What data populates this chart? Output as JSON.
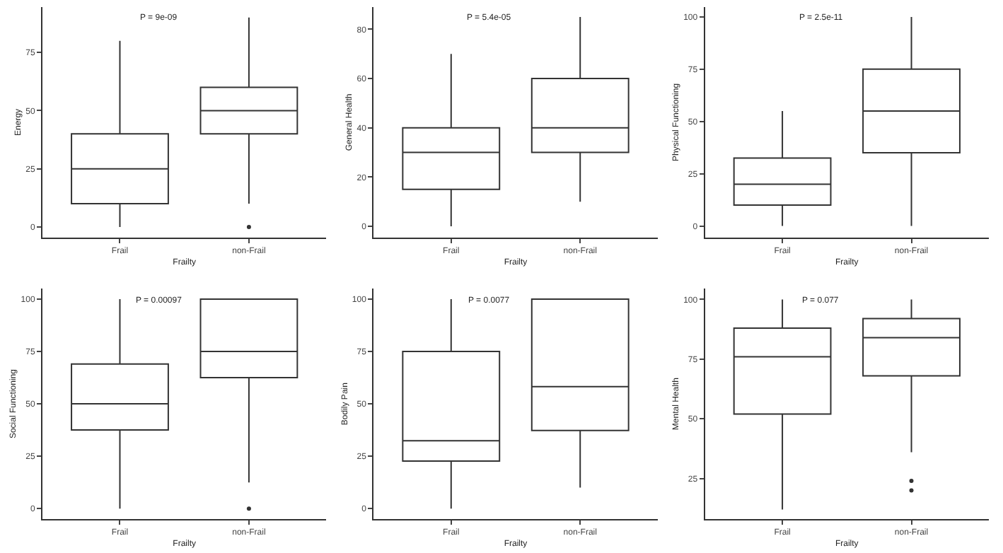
{
  "chart_data": [
    {
      "type": "box",
      "xlabel": "Frailty",
      "ylabel": "Energy",
      "annotations": [
        "P = 9e-09"
      ],
      "categories": [
        "Frail",
        "non-Frail"
      ],
      "ylim": [
        -4.5,
        94.5
      ],
      "yticks": [
        0,
        25,
        50,
        75
      ],
      "series": [
        {
          "color": "#333333",
          "boxes": [
            {
              "low": 0,
              "q1": 10,
              "median": 25,
              "q3": 40,
              "high": 80
            },
            {
              "low": 10,
              "q1": 40,
              "median": 50,
              "q3": 60,
              "high": 90,
              "outliers": [
                0
              ]
            }
          ]
        }
      ]
    },
    {
      "type": "box",
      "xlabel": "Frailty",
      "ylabel": "General Health",
      "annotations": [
        "P = 5.4e-05"
      ],
      "categories": [
        "Frail",
        "non-Frail"
      ],
      "ylim": [
        -4.5,
        89
      ],
      "yticks": [
        0,
        20,
        40,
        60,
        80
      ],
      "series": [
        {
          "color": "#333333",
          "boxes": [
            {
              "low": 0,
              "q1": 15,
              "median": 30,
              "q3": 40,
              "high": 70
            },
            {
              "low": 10,
              "q1": 30,
              "median": 40,
              "q3": 60,
              "high": 85
            }
          ]
        }
      ]
    },
    {
      "type": "box",
      "xlabel": "Frailty",
      "ylabel": "Physical Functioning",
      "annotations": [
        "P = 2.5e-11"
      ],
      "categories": [
        "Frail",
        "non-Frail"
      ],
      "ylim": [
        -5.5,
        104.7
      ],
      "yticks": [
        0,
        25,
        50,
        75,
        100
      ],
      "series": [
        {
          "color": "#333333",
          "boxes": [
            {
              "low": 0,
              "q1": 10,
              "median": 20,
              "q3": 32.5,
              "high": 55
            },
            {
              "low": 0,
              "q1": 35,
              "median": 55,
              "q3": 75,
              "high": 100
            }
          ]
        }
      ]
    },
    {
      "type": "box",
      "xlabel": "Frailty",
      "ylabel": "Social Functioning",
      "annotations": [
        "P = 0.00097"
      ],
      "categories": [
        "Frail",
        "non-Frail"
      ],
      "ylim": [
        -5,
        105
      ],
      "yticks": [
        0,
        25,
        50,
        75,
        100
      ],
      "series": [
        {
          "color": "#333333",
          "boxes": [
            {
              "low": 0,
              "q1": 37.5,
              "median": 50,
              "q3": 69,
              "high": 100
            },
            {
              "low": 12.5,
              "q1": 62.5,
              "median": 75,
              "q3": 100,
              "high": 100,
              "outliers": [
                0
              ]
            }
          ]
        }
      ]
    },
    {
      "type": "box",
      "xlabel": "Frailty",
      "ylabel": "Bodily Pain",
      "annotations": [
        "P = 0.0077"
      ],
      "categories": [
        "Frail",
        "non-Frail"
      ],
      "ylim": [
        -5,
        105
      ],
      "yticks": [
        0,
        25,
        50,
        75,
        100
      ],
      "series": [
        {
          "color": "#333333",
          "boxes": [
            {
              "low": 0,
              "q1": 22.7,
              "median": 32.4,
              "q3": 75,
              "high": 100
            },
            {
              "low": 10,
              "q1": 37.3,
              "median": 58.2,
              "q3": 100,
              "high": 100
            }
          ]
        }
      ]
    },
    {
      "type": "box",
      "xlabel": "Frailty",
      "ylabel": "Mental Health",
      "annotations": [
        "P = 0.077"
      ],
      "categories": [
        "Frail",
        "non-Frail"
      ],
      "ylim": [
        8,
        104.5
      ],
      "yticks": [
        25,
        50,
        75,
        100
      ],
      "series": [
        {
          "color": "#333333",
          "boxes": [
            {
              "low": 12,
              "q1": 52,
              "median": 76,
              "q3": 88,
              "high": 100
            },
            {
              "low": 36,
              "q1": 68,
              "median": 84,
              "q3": 92,
              "high": 100,
              "outliers": [
                24,
                20
              ]
            }
          ]
        }
      ]
    }
  ]
}
